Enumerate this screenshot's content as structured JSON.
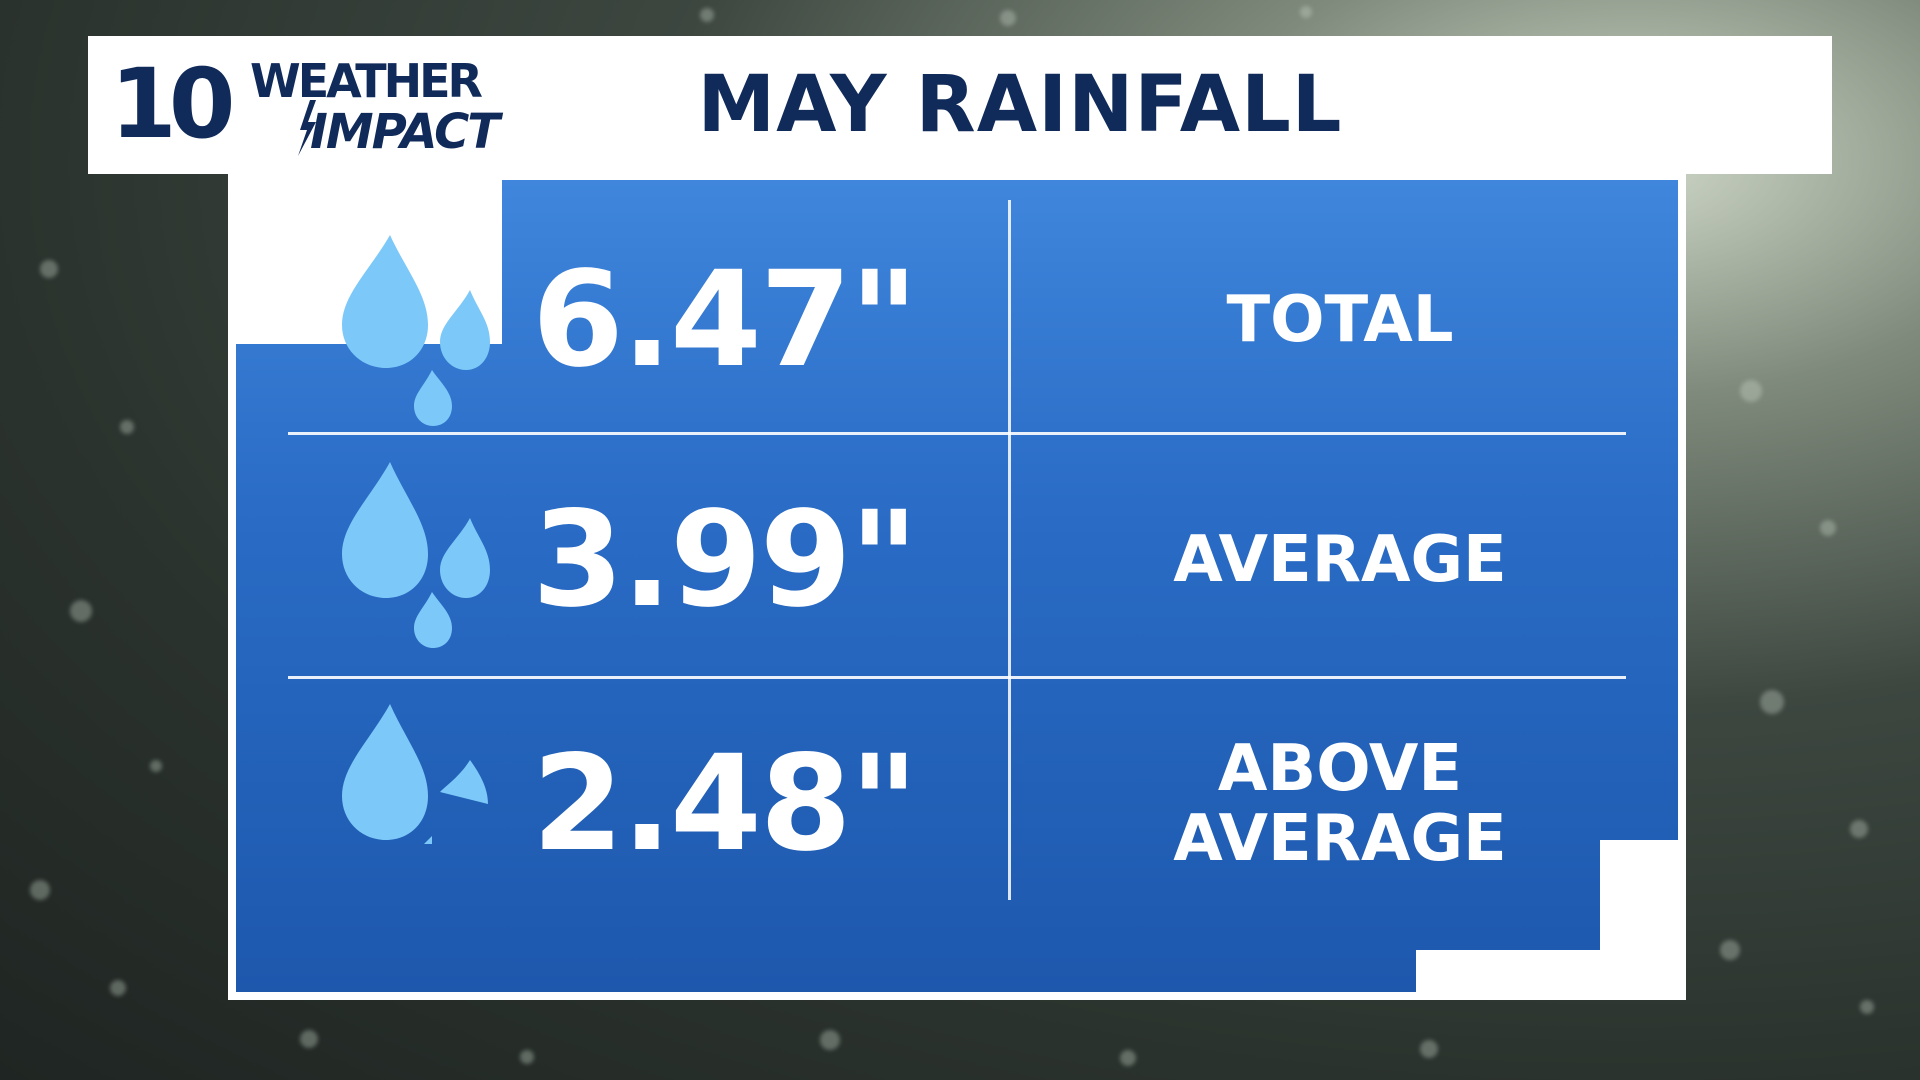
{
  "header": {
    "logo": {
      "number": "10",
      "line1": "WEATHER",
      "line2": "IMPACT",
      "icon": "lightning-bolt-icon"
    },
    "title": "MAY RAINFALL"
  },
  "rows": [
    {
      "value": "6.47\"",
      "label": "TOTAL",
      "icon": "raindrops-icon"
    },
    {
      "value": "3.99\"",
      "label": "AVERAGE",
      "icon": "raindrops-icon"
    },
    {
      "value": "2.48\"",
      "label_line1": "ABOVE",
      "label_line2": "AVERAGE",
      "icon": "raindrops-icon"
    }
  ],
  "colors": {
    "brand_navy": "#102a5a",
    "panel_blue": "#2a6cc6",
    "drop_blue": "#7cc8f8",
    "text_white": "#ffffff"
  }
}
